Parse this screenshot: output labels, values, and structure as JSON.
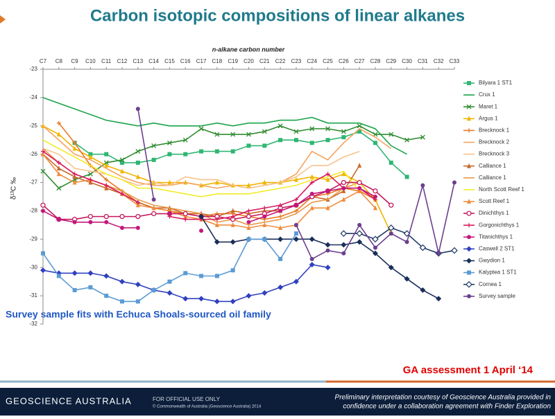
{
  "chart_data": {
    "type": "line",
    "title": "Carbon isotopic compositions of linear alkanes",
    "x_label": "n-alkane carbon number",
    "y_label": "δ¹³C ‰",
    "categories": [
      "C7",
      "C8",
      "C9",
      "C10",
      "C11",
      "C12",
      "C13",
      "C14",
      "C15",
      "C16",
      "C17",
      "C18",
      "C19",
      "C20",
      "C21",
      "C22",
      "C23",
      "C24",
      "C25",
      "C26",
      "C27",
      "C28",
      "C29",
      "C30",
      "C31",
      "C32",
      "C33"
    ],
    "ylim": [
      -32,
      -23
    ],
    "yticks": [
      -23,
      -24,
      -25,
      -26,
      -27,
      -28,
      -29,
      -30,
      -31,
      -32
    ],
    "grid": false,
    "series": [
      {
        "name": "Bilyara 1 ST1",
        "color": "#2fb673",
        "marker": "square",
        "values": [
          null,
          null,
          -25.6,
          -26.0,
          -26.0,
          -26.3,
          -26.3,
          -26.2,
          -26.0,
          -26.0,
          -25.9,
          -25.9,
          -25.9,
          -25.7,
          -25.7,
          -25.5,
          -25.5,
          -25.6,
          -25.5,
          -25.4,
          -25.2,
          -25.6,
          -26.3,
          -26.8,
          null,
          null,
          null
        ]
      },
      {
        "name": "Crux 1",
        "color": "#1aa34a",
        "marker": "none",
        "values": [
          -24.0,
          -24.2,
          -24.4,
          -24.6,
          -24.8,
          -24.9,
          -25.0,
          -24.9,
          -25.0,
          -25.0,
          -25.0,
          -24.9,
          -25.0,
          -24.9,
          -24.9,
          -24.8,
          -24.8,
          -24.7,
          -24.9,
          -24.9,
          -24.9,
          -25.1,
          -25.7,
          -26.0,
          null,
          null,
          null
        ]
      },
      {
        "name": "Maret 1",
        "color": "#2e8b2e",
        "marker": "x",
        "values": [
          -26.6,
          -27.2,
          -26.9,
          -26.7,
          -26.3,
          -26.2,
          -25.9,
          -25.7,
          -25.6,
          -25.5,
          -25.1,
          -25.3,
          -25.3,
          -25.3,
          -25.2,
          -25.0,
          -25.2,
          -25.1,
          -25.1,
          -25.2,
          -25.0,
          -25.3,
          -25.3,
          -25.5,
          -25.4,
          null,
          null
        ]
      },
      {
        "name": "Argus 1",
        "color": "#f0b400",
        "marker": "triangle",
        "values": [
          -25.0,
          -25.3,
          -25.8,
          -26.1,
          -26.4,
          -26.6,
          -26.8,
          -27.0,
          -27.0,
          -27.0,
          -27.1,
          -27.0,
          -27.1,
          -27.1,
          -27.0,
          -27.0,
          -26.9,
          -26.8,
          -26.9,
          -26.7,
          -27.0,
          -27.6,
          -28.8,
          null,
          null,
          null,
          null
        ]
      },
      {
        "name": "Brecknock 1",
        "color": "#e87722",
        "marker": "plus",
        "values": [
          null,
          -24.9,
          -25.6,
          -26.4,
          -26.9,
          -27.3,
          -27.7,
          -27.9,
          -28.0,
          -28.1,
          -28.2,
          -28.1,
          -28.1,
          -28.2,
          -28.3,
          -28.2,
          -28.0,
          -27.5,
          -27.4,
          -27.2,
          -27.3,
          -27.6,
          null,
          null,
          null,
          null,
          null
        ]
      },
      {
        "name": "Brecknock 2",
        "color": "#f5a35c",
        "marker": "none",
        "values": [
          -25.0,
          -25.5,
          -26.0,
          -26.2,
          -26.5,
          -26.8,
          -27.0,
          -27.1,
          -27.1,
          -27.0,
          -27.1,
          -27.2,
          -27.1,
          -27.2,
          -27.1,
          -27.0,
          -26.7,
          -25.9,
          -26.2,
          -25.6,
          -25.1,
          -25.4,
          -25.8,
          null,
          null,
          null,
          null
        ]
      },
      {
        "name": "Brecknock 3",
        "color": "#f7c38d",
        "marker": "none",
        "values": [
          -25.8,
          -26.0,
          -26.5,
          -26.6,
          -26.7,
          -26.9,
          -27.1,
          -27.0,
          -27.1,
          -26.8,
          -26.9,
          -26.9,
          -27.1,
          -27.2,
          -27.1,
          -27.0,
          -26.8,
          -26.4,
          -26.4,
          -26.1,
          -25.9,
          null,
          null,
          null,
          null,
          null,
          null
        ]
      },
      {
        "name": "Calliance 1",
        "color": "#c8692a",
        "marker": "triangle",
        "values": [
          -26.0,
          -26.5,
          -26.8,
          -27.0,
          -27.2,
          -27.4,
          -27.7,
          -27.9,
          -27.9,
          -28.1,
          -28.1,
          -28.2,
          -28.0,
          -28.1,
          -28.0,
          -28.0,
          -27.8,
          -27.5,
          -27.6,
          -27.3,
          -26.4,
          null,
          null,
          null,
          null,
          null,
          null
        ]
      },
      {
        "name": "Calliance 1",
        "color": "#e89a4a",
        "marker": "none",
        "values": [
          -25.8,
          -26.3,
          -26.7,
          -26.9,
          -27.1,
          -27.3,
          -27.6,
          -27.8,
          -27.9,
          -28.0,
          -28.1,
          -28.4,
          -28.3,
          -28.5,
          -28.4,
          -28.3,
          -28.1,
          -27.7,
          -27.6,
          -27.2,
          -27.0,
          null,
          null,
          null,
          null,
          null,
          null
        ]
      },
      {
        "name": "North Scott Reef 1",
        "color": "#f2ec2a",
        "marker": "none",
        "values": [
          -25.5,
          -25.8,
          -26.1,
          -26.4,
          -26.7,
          -26.9,
          -27.2,
          -27.2,
          -27.3,
          -27.4,
          -27.5,
          -27.4,
          -27.4,
          -27.4,
          -27.3,
          -27.2,
          -27.1,
          -26.9,
          -26.8,
          -26.6,
          -27.3,
          null,
          null,
          null,
          null,
          null,
          null
        ]
      },
      {
        "name": "Scott Reef 1",
        "color": "#f08c3c",
        "marker": "triangle",
        "values": [
          -26.0,
          -26.7,
          -27.0,
          -26.9,
          -27.1,
          -27.4,
          -27.8,
          -27.9,
          -28.0,
          -28.2,
          -28.3,
          -28.5,
          -28.5,
          -28.6,
          -28.5,
          -28.6,
          -28.5,
          -27.9,
          -27.9,
          -27.6,
          -27.3,
          -27.9,
          null,
          null,
          null,
          null,
          null
        ]
      },
      {
        "name": "Dinichthys 1",
        "color": "#c2185b",
        "marker": "circle",
        "values": [
          -27.8,
          -28.3,
          -28.3,
          -28.2,
          -28.2,
          -28.2,
          -28.2,
          -28.1,
          -28.1,
          -28.1,
          -28.2,
          -28.2,
          -28.3,
          -28.2,
          -28.1,
          -27.9,
          -27.8,
          -27.5,
          -27.3,
          -27.0,
          -27.0,
          -27.3,
          -27.8,
          null,
          null,
          null,
          null
        ]
      },
      {
        "name": "Gorgonichthys 1",
        "color": "#d81b60",
        "marker": "plus",
        "values": [
          -25.9,
          -26.3,
          -26.7,
          -26.9,
          -27.1,
          -27.4,
          -27.7,
          null,
          -28.2,
          -28.3,
          -28.3,
          -28.3,
          -28.2,
          -28.0,
          -27.9,
          -27.8,
          -27.6,
          -27.0,
          -26.7,
          -27.2,
          -27.2,
          -27.6,
          null,
          null,
          null,
          null,
          null
        ]
      },
      {
        "name": "Titanichthys 1",
        "color": "#c2187a",
        "marker": "dot",
        "values": [
          -28.0,
          -28.3,
          -28.4,
          -28.4,
          -28.4,
          -28.6,
          -28.6,
          null,
          -28.1,
          null,
          -28.7,
          null,
          null,
          -28.4,
          -28.2,
          -28.0,
          -27.8,
          -27.4,
          -27.3,
          -27.2,
          -27.2,
          -27.5,
          null,
          null,
          null,
          null,
          null
        ]
      },
      {
        "name": "Caswell 2 ST1",
        "color": "#3040c0",
        "marker": "diamond",
        "values": [
          -30.1,
          -30.2,
          -30.2,
          -30.2,
          -30.3,
          -30.5,
          -30.6,
          -30.8,
          -30.9,
          -31.1,
          -31.1,
          -31.2,
          -31.2,
          -31.0,
          -30.9,
          -30.7,
          -30.5,
          -29.9,
          -30.0,
          null,
          null,
          null,
          null,
          null,
          null,
          null,
          null
        ]
      },
      {
        "name": "Gwydion 1",
        "color": "#1a2e5a",
        "marker": "diamond",
        "values": [
          null,
          null,
          null,
          null,
          null,
          null,
          null,
          null,
          null,
          null,
          -28.2,
          -29.1,
          -29.1,
          -29.0,
          -29.0,
          -29.0,
          -29.0,
          -29.0,
          -29.2,
          -29.2,
          -29.1,
          -29.5,
          -30.0,
          -30.4,
          -30.8,
          -31.1,
          null
        ]
      },
      {
        "name": "Kalyptea 1 ST1",
        "color": "#5b9bd5",
        "marker": "square",
        "values": [
          -29.5,
          -30.3,
          -30.8,
          -30.7,
          -31.0,
          -31.2,
          -31.2,
          -30.8,
          -30.5,
          -30.2,
          -30.3,
          -30.3,
          -30.1,
          -29.0,
          -29.0,
          -29.7,
          -28.8,
          null,
          null,
          null,
          null,
          null,
          null,
          null,
          null,
          null,
          null
        ]
      },
      {
        "name": "Cornea 1",
        "color": "#1f3864",
        "marker": "hollow-diamond",
        "values": [
          null,
          null,
          null,
          null,
          null,
          null,
          null,
          null,
          null,
          null,
          null,
          null,
          null,
          null,
          null,
          null,
          null,
          null,
          null,
          -28.8,
          -28.8,
          -29.0,
          -28.6,
          -28.8,
          -29.3,
          -29.5,
          -29.4
        ]
      },
      {
        "name": "Survey sample",
        "color": "#6b3f8e",
        "marker": "dot",
        "values": [
          null,
          null,
          null,
          null,
          null,
          null,
          -24.4,
          -27.6,
          null,
          null,
          null,
          null,
          null,
          null,
          null,
          null,
          -28.5,
          -29.7,
          -29.4,
          -29.5,
          -28.5,
          -29.3,
          -28.8,
          -29.1,
          -27.1,
          -29.5,
          -27.0
        ]
      }
    ]
  },
  "note": "Survey sample fits with Echuca Shoals-sourced oil family",
  "assessment": "GA assessment 1 April ‘14",
  "footer": {
    "org": "GEOSCIENCE AUSTRALIA",
    "classification": "FOR OFFICIAL USE ONLY",
    "copyright": "© Commonwealth of Australia (Geoscience Australia) 2014",
    "credit_1": "Preliminary interpretation courtesy of Geoscience Australia provided in",
    "credit_2": "confidence under a collaboration agreement with Finder Exploration"
  }
}
